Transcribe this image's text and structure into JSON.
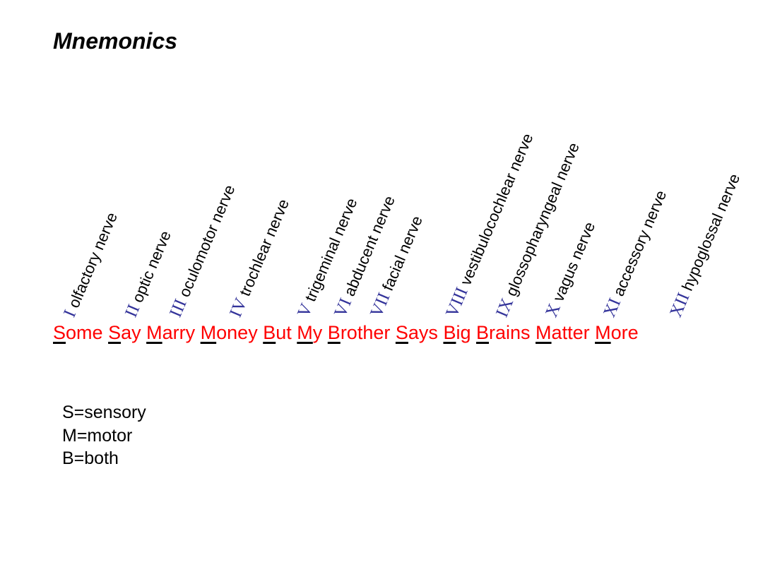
{
  "slide": {
    "title": "Mnemonics"
  },
  "nerves": [
    {
      "numeral": "I",
      "name": "olfactory nerve"
    },
    {
      "numeral": "II",
      "name": "optic nerve"
    },
    {
      "numeral": "III",
      "name": "oculomotor nerve"
    },
    {
      "numeral": "IV",
      "name": "trochlear nerve"
    },
    {
      "numeral": "V",
      "name": "trigeminal nerve"
    },
    {
      "numeral": "VI",
      "name": "abducent nerve"
    },
    {
      "numeral": "VII",
      "name": "facial nerve"
    },
    {
      "numeral": "VIII",
      "name": "vestibulocochlear nerve"
    },
    {
      "numeral": "IX",
      "name": "glossopharyngeal nerve"
    },
    {
      "numeral": "X",
      "name": "vagus nerve"
    },
    {
      "numeral": "XI",
      "name": "accessory nerve"
    },
    {
      "numeral": "XII",
      "name": "hypoglossal nerve"
    }
  ],
  "mnemonic": [
    {
      "first": "S",
      "rest": "ome"
    },
    {
      "first": "S",
      "rest": "ay"
    },
    {
      "first": "M",
      "rest": "arry"
    },
    {
      "first": "M",
      "rest": "oney"
    },
    {
      "first": "B",
      "rest": "ut"
    },
    {
      "first": "M",
      "rest": "y"
    },
    {
      "first": "B",
      "rest": "rother"
    },
    {
      "first": "S",
      "rest": "ays"
    },
    {
      "first": "B",
      "rest": "ig"
    },
    {
      "first": "B",
      "rest": "rains"
    },
    {
      "first": "M",
      "rest": "atter"
    },
    {
      "first": "M",
      "rest": "ore"
    }
  ],
  "legend": {
    "sensory": "S=sensory",
    "motor": "M=motor",
    "both": "B=both"
  },
  "colors": {
    "mnemonic_text": "#ff0000",
    "numeral": "#33339a",
    "underline": "#000000"
  }
}
